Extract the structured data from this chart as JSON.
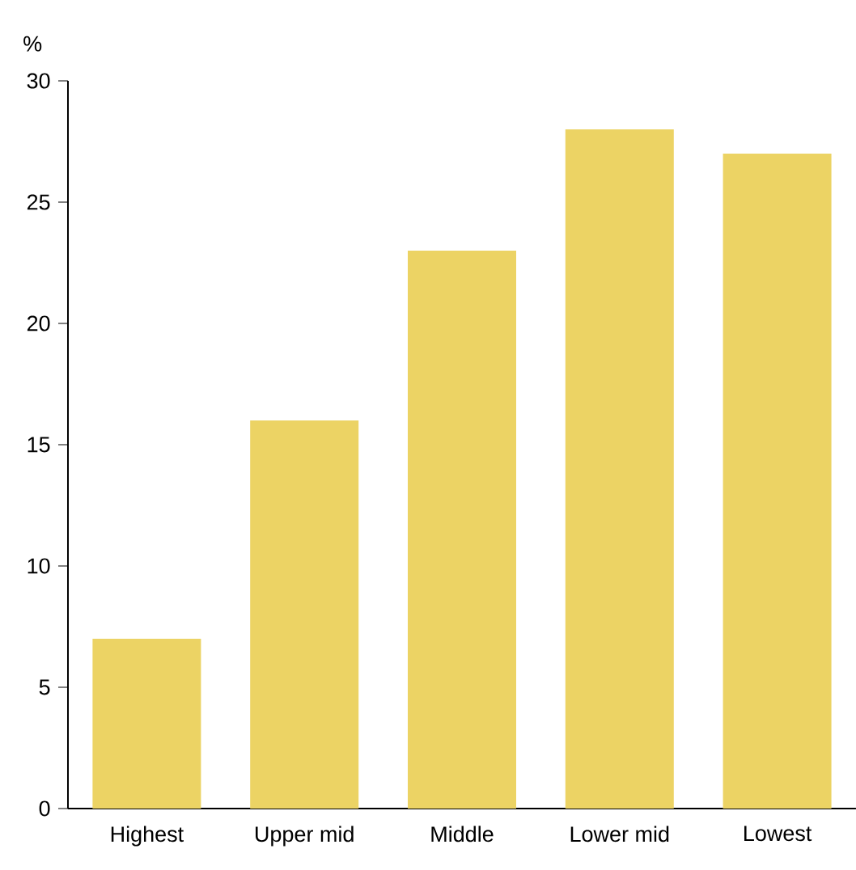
{
  "chart_data": {
    "type": "bar",
    "ylabel": "%",
    "categories": [
      "Highest",
      "Upper mid",
      "Middle",
      "Lower mid",
      "Lowest"
    ],
    "values": [
      7,
      16,
      23,
      28,
      27
    ],
    "color": "#ecd364",
    "ylim": [
      0,
      30
    ],
    "yticks": [
      0,
      5,
      10,
      15,
      20,
      25,
      30
    ]
  }
}
